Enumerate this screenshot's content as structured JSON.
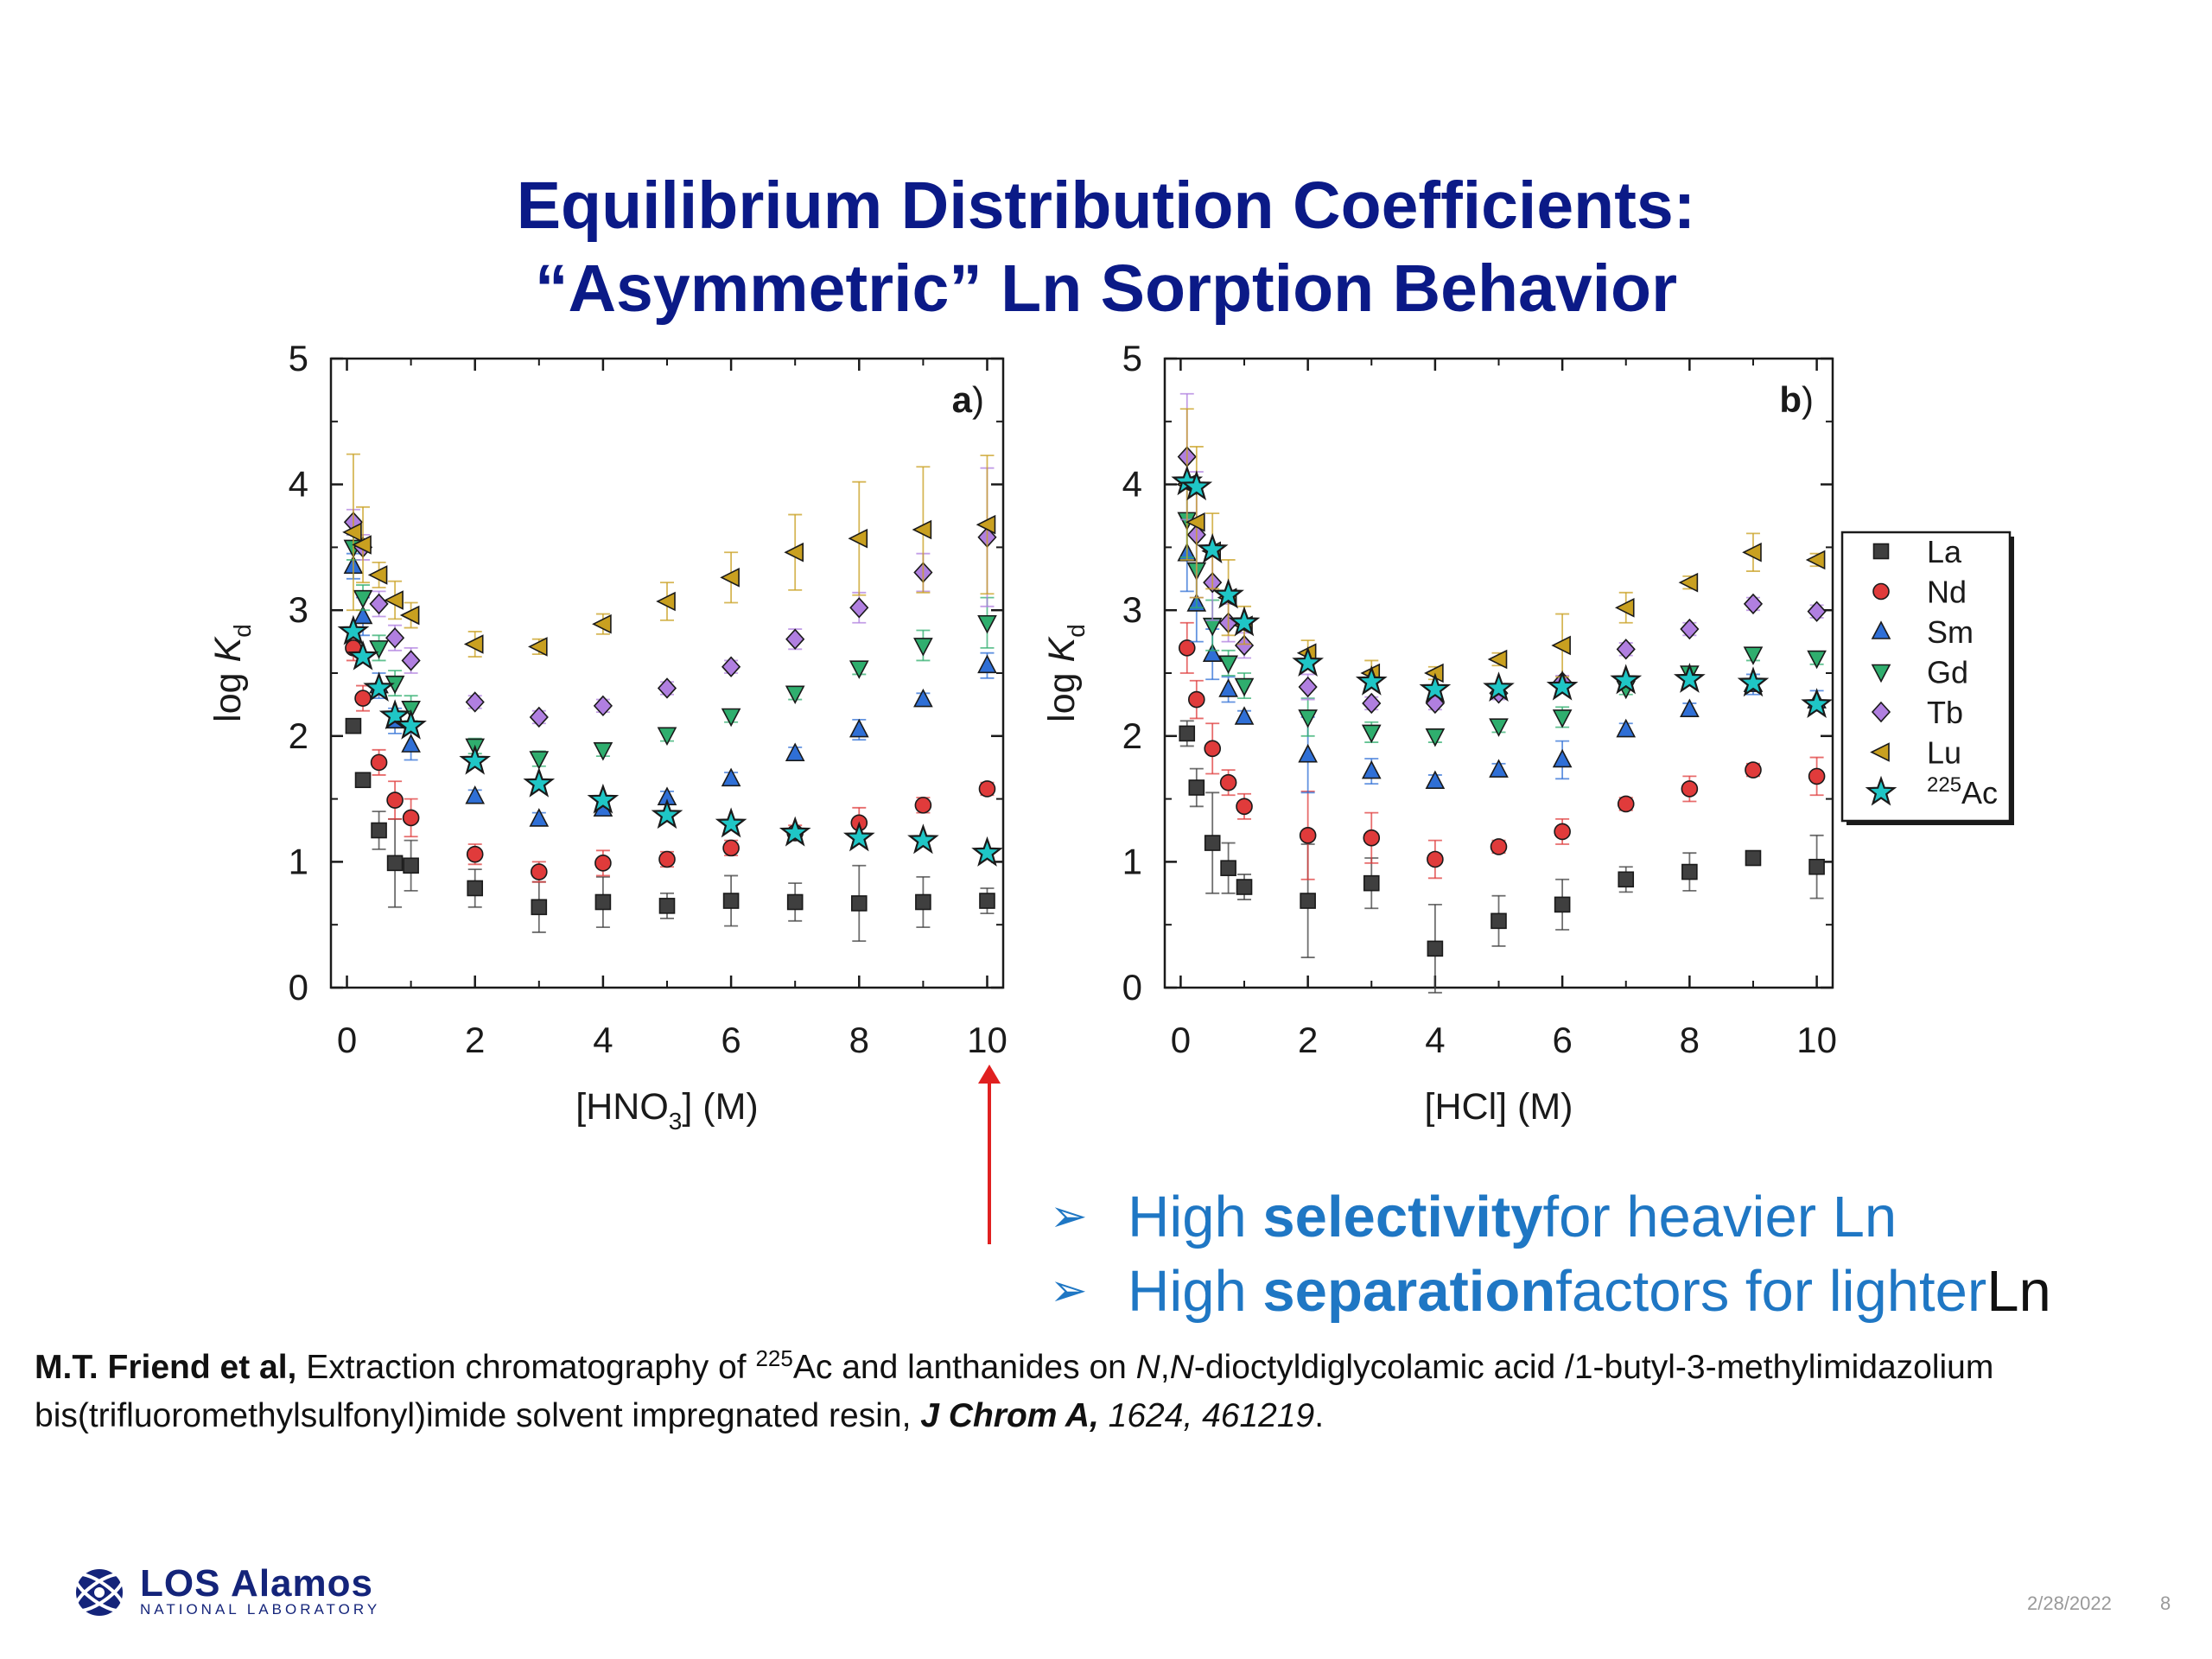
{
  "title": {
    "line1": "Equilibrium Distribution Coefficients:",
    "line2": "“Asymmetric” Ln Sorption Behavior"
  },
  "colors": {
    "title": "#0b1a87",
    "bullet": "#1f77c4",
    "arrow": "#e02020"
  },
  "legend": {
    "items": [
      {
        "label": "La",
        "marker": "square",
        "color": "#3f3f3f"
      },
      {
        "label": "Nd",
        "marker": "circle",
        "color": "#e03b3b"
      },
      {
        "label": "Sm",
        "marker": "triangle-up",
        "color": "#2f6fd6"
      },
      {
        "label": "Gd",
        "marker": "triangle-down",
        "color": "#2fae6e"
      },
      {
        "label": "Tb",
        "marker": "diamond",
        "color": "#b07fe0"
      },
      {
        "label": "Lu",
        "marker": "triangle-left",
        "color": "#c9a020"
      },
      {
        "label": "Ac",
        "superscript": "225",
        "marker": "star",
        "color": "#1fc6c6"
      }
    ]
  },
  "chart_data": [
    {
      "panel": "a)",
      "type": "scatter",
      "xlabel": {
        "pre": "[HNO",
        "sub": "3",
        "post": "] (M)"
      },
      "ylabel": {
        "pre": "log ",
        "italic": "K",
        "sub": "d"
      },
      "xlim": [
        -0.25,
        10.25
      ],
      "ylim": [
        0,
        5
      ],
      "xticks": [
        "0",
        "2",
        "4",
        "6",
        "8",
        "10"
      ],
      "yticks": [
        "0",
        "1",
        "2",
        "3",
        "4",
        "5"
      ],
      "series": [
        {
          "name": "La",
          "x": [
            0.1,
            0.25,
            0.5,
            0.75,
            1,
            2,
            3,
            4,
            5,
            6,
            7,
            8,
            9,
            10
          ],
          "y": [
            2.08,
            1.65,
            1.25,
            0.99,
            0.97,
            0.79,
            0.64,
            0.68,
            0.65,
            0.69,
            0.68,
            0.67,
            0.68,
            0.69
          ],
          "err": [
            0.05,
            0.05,
            0.15,
            0.35,
            0.2,
            0.15,
            0.2,
            0.2,
            0.1,
            0.2,
            0.15,
            0.3,
            0.2,
            0.1
          ]
        },
        {
          "name": "Nd",
          "x": [
            0.1,
            0.25,
            0.5,
            0.75,
            1,
            2,
            3,
            4,
            5,
            6,
            7,
            8,
            9,
            10
          ],
          "y": [
            2.7,
            2.3,
            1.79,
            1.49,
            1.35,
            1.06,
            0.92,
            0.99,
            1.02,
            1.11,
            1.23,
            1.31,
            1.45,
            1.58
          ],
          "err": [
            0.1,
            0.1,
            0.1,
            0.15,
            0.15,
            0.08,
            0.08,
            0.1,
            0.06,
            0.06,
            0.06,
            0.12,
            0.06,
            0.05
          ]
        },
        {
          "name": "Sm",
          "x": [
            0.1,
            0.25,
            0.5,
            0.75,
            1,
            2,
            3,
            4,
            5,
            6,
            7,
            8,
            9,
            10
          ],
          "y": [
            3.35,
            2.95,
            2.4,
            2.12,
            1.93,
            1.52,
            1.34,
            1.42,
            1.51,
            1.66,
            1.86,
            2.05,
            2.29,
            2.56
          ],
          "err": [
            0.1,
            0.15,
            0.1,
            0.1,
            0.12,
            0.05,
            0.05,
            0.05,
            0.05,
            0.05,
            0.05,
            0.08,
            0.05,
            0.1
          ]
        },
        {
          "name": "Gd",
          "x": [
            0.1,
            0.25,
            0.5,
            0.75,
            1,
            2,
            3,
            4,
            5,
            6,
            7,
            8,
            9,
            10
          ],
          "y": [
            3.5,
            3.1,
            2.7,
            2.42,
            2.22,
            1.92,
            1.82,
            1.89,
            2.01,
            2.16,
            2.34,
            2.54,
            2.72,
            2.9
          ],
          "err": [
            0.1,
            0.1,
            0.1,
            0.1,
            0.1,
            0.06,
            0.06,
            0.05,
            0.05,
            0.05,
            0.05,
            0.05,
            0.12,
            0.2
          ]
        },
        {
          "name": "Tb",
          "x": [
            0.1,
            0.25,
            0.5,
            0.75,
            1,
            2,
            3,
            4,
            5,
            6,
            7,
            8,
            9,
            10
          ],
          "y": [
            3.7,
            3.5,
            3.05,
            2.78,
            2.6,
            2.27,
            2.15,
            2.24,
            2.38,
            2.55,
            2.77,
            3.02,
            3.3,
            3.58
          ],
          "err": [
            0.1,
            0.1,
            0.1,
            0.1,
            0.1,
            0.05,
            0.05,
            0.05,
            0.05,
            0.05,
            0.08,
            0.12,
            0.15,
            0.55
          ]
        },
        {
          "name": "Lu",
          "x": [
            0.1,
            0.25,
            0.5,
            0.75,
            1,
            2,
            3,
            4,
            5,
            6,
            7,
            8,
            9,
            10
          ],
          "y": [
            3.62,
            3.52,
            3.28,
            3.08,
            2.96,
            2.73,
            2.71,
            2.89,
            3.07,
            3.26,
            3.46,
            3.57,
            3.64,
            3.68
          ],
          "err": [
            0.62,
            0.3,
            0.1,
            0.15,
            0.1,
            0.1,
            0.06,
            0.08,
            0.15,
            0.2,
            0.3,
            0.45,
            0.5,
            0.55
          ]
        },
        {
          "name": "225Ac",
          "x": [
            0.1,
            0.25,
            0.5,
            0.75,
            1,
            2,
            3,
            4,
            5,
            6,
            7,
            8,
            9,
            10
          ],
          "y": [
            2.83,
            2.63,
            2.38,
            2.16,
            2.08,
            1.8,
            1.62,
            1.49,
            1.37,
            1.3,
            1.23,
            1.19,
            1.17,
            1.07
          ],
          "err": [
            0,
            0,
            0,
            0,
            0,
            0,
            0,
            0,
            0,
            0,
            0,
            0,
            0,
            0
          ]
        }
      ]
    },
    {
      "panel": "b)",
      "type": "scatter",
      "xlabel": {
        "pre": "[HCl] (M)",
        "sub": "",
        "post": ""
      },
      "ylabel": {
        "pre": "log ",
        "italic": "K",
        "sub": "d"
      },
      "xlim": [
        -0.25,
        10.25
      ],
      "ylim": [
        0,
        5
      ],
      "xticks": [
        "0",
        "2",
        "4",
        "6",
        "8",
        "10"
      ],
      "yticks": [
        "0",
        "1",
        "2",
        "3",
        "4",
        "5"
      ],
      "series": [
        {
          "name": "La",
          "x": [
            0.1,
            0.25,
            0.5,
            0.75,
            1,
            2,
            3,
            4,
            5,
            6,
            7,
            8,
            9,
            10
          ],
          "y": [
            2.02,
            1.59,
            1.15,
            0.95,
            0.8,
            0.69,
            0.83,
            0.31,
            0.53,
            0.66,
            0.86,
            0.92,
            1.03,
            0.96
          ],
          "err": [
            0.1,
            0.15,
            0.4,
            0.2,
            0.1,
            0.45,
            0.2,
            0.35,
            0.2,
            0.2,
            0.1,
            0.15,
            0.05,
            0.25
          ]
        },
        {
          "name": "Nd",
          "x": [
            0.1,
            0.25,
            0.5,
            0.75,
            1,
            2,
            3,
            4,
            5,
            6,
            7,
            8,
            9,
            10
          ],
          "y": [
            2.7,
            2.29,
            1.9,
            1.63,
            1.44,
            1.21,
            1.19,
            1.02,
            1.12,
            1.24,
            1.46,
            1.58,
            1.73,
            1.68
          ],
          "err": [
            0.2,
            0.15,
            0.2,
            0.1,
            0.1,
            0.35,
            0.2,
            0.15,
            0.05,
            0.1,
            0.05,
            0.1,
            0.05,
            0.15
          ]
        },
        {
          "name": "Sm",
          "x": [
            0.1,
            0.25,
            0.5,
            0.75,
            1,
            2,
            3,
            4,
            5,
            6,
            7,
            8,
            9,
            10
          ],
          "y": [
            3.45,
            3.05,
            2.65,
            2.37,
            2.15,
            1.85,
            1.72,
            1.64,
            1.73,
            1.81,
            2.05,
            2.21,
            2.41,
            2.28
          ],
          "err": [
            0.3,
            0.3,
            0.2,
            0.1,
            0.05,
            0.3,
            0.1,
            0.05,
            0.05,
            0.15,
            0.05,
            0.05,
            0.08,
            0.08
          ]
        },
        {
          "name": "Gd",
          "x": [
            0.1,
            0.25,
            0.5,
            0.75,
            1,
            2,
            3,
            4,
            5,
            6,
            7,
            8,
            9,
            10
          ],
          "y": [
            3.72,
            3.32,
            2.88,
            2.58,
            2.4,
            2.15,
            2.03,
            2.0,
            2.08,
            2.15,
            2.38,
            2.5,
            2.65,
            2.62
          ],
          "err": [
            0.3,
            0.3,
            0.2,
            0.1,
            0.1,
            0.15,
            0.08,
            0.05,
            0.05,
            0.08,
            0.05,
            0.05,
            0.05,
            0.05
          ]
        },
        {
          "name": "Tb",
          "x": [
            0.1,
            0.25,
            0.5,
            0.75,
            1,
            2,
            3,
            4,
            5,
            6,
            7,
            8,
            9,
            10
          ],
          "y": [
            4.22,
            3.6,
            3.22,
            2.9,
            2.72,
            2.39,
            2.26,
            2.26,
            2.34,
            2.43,
            2.69,
            2.85,
            3.05,
            2.99
          ],
          "err": [
            0.5,
            0.5,
            0.3,
            0.15,
            0.1,
            0.1,
            0.05,
            0.05,
            0.05,
            0.05,
            0.05,
            0.05,
            0.05,
            0.05
          ]
        },
        {
          "name": "Lu",
          "x": [
            0.1,
            0.25,
            0.5,
            0.75,
            1,
            2,
            3,
            4,
            5,
            6,
            7,
            8,
            9,
            10
          ],
          "y": [
            4.0,
            3.7,
            3.47,
            3.1,
            2.88,
            2.66,
            2.5,
            2.5,
            2.61,
            2.72,
            3.02,
            3.22,
            3.46,
            3.4
          ],
          "err": [
            0.6,
            0.6,
            0.3,
            0.3,
            0.15,
            0.1,
            0.1,
            0.05,
            0.05,
            0.25,
            0.12,
            0.05,
            0.15,
            0.05
          ]
        },
        {
          "name": "225Ac",
          "x": [
            0.1,
            0.25,
            0.5,
            0.75,
            1,
            2,
            3,
            4,
            5,
            6,
            7,
            8,
            9,
            10
          ],
          "y": [
            4.02,
            3.98,
            3.48,
            3.12,
            2.9,
            2.58,
            2.43,
            2.37,
            2.38,
            2.39,
            2.44,
            2.45,
            2.42,
            2.25
          ],
          "err": [
            0,
            0,
            0,
            0,
            0,
            0,
            0,
            0,
            0,
            0,
            0,
            0,
            0,
            0
          ]
        }
      ]
    }
  ],
  "bullets": [
    {
      "mark": "➢",
      "pre": "High ",
      "bold": "selectivity",
      "post": " for heavier Ln",
      "tail": ""
    },
    {
      "mark": "➢",
      "pre": "High ",
      "bold": "separation",
      "post": " factors for lighter",
      "tail": " Ln"
    }
  ],
  "citation": {
    "authors": "M.T. Friend et al,",
    "text1": " Extraction chromatography of ",
    "sup": "225",
    "text2": "Ac and lanthanides on ",
    "italic1": "N",
    "comma": ",",
    "italic2": "N",
    "text3": "-dioctyldiglycolamic acid /1-butyl-3-methylimidazolium bis(trifluoromethylsulfonyl)imide solvent impregnated resin, ",
    "journal": "J Chrom A,",
    "ref": " 1624, 461219",
    "end": "."
  },
  "logo": {
    "main": "LOS Alamos",
    "sub": "NATIONAL LABORATORY"
  },
  "footer": {
    "date": "2/28/2022",
    "page": "8"
  }
}
